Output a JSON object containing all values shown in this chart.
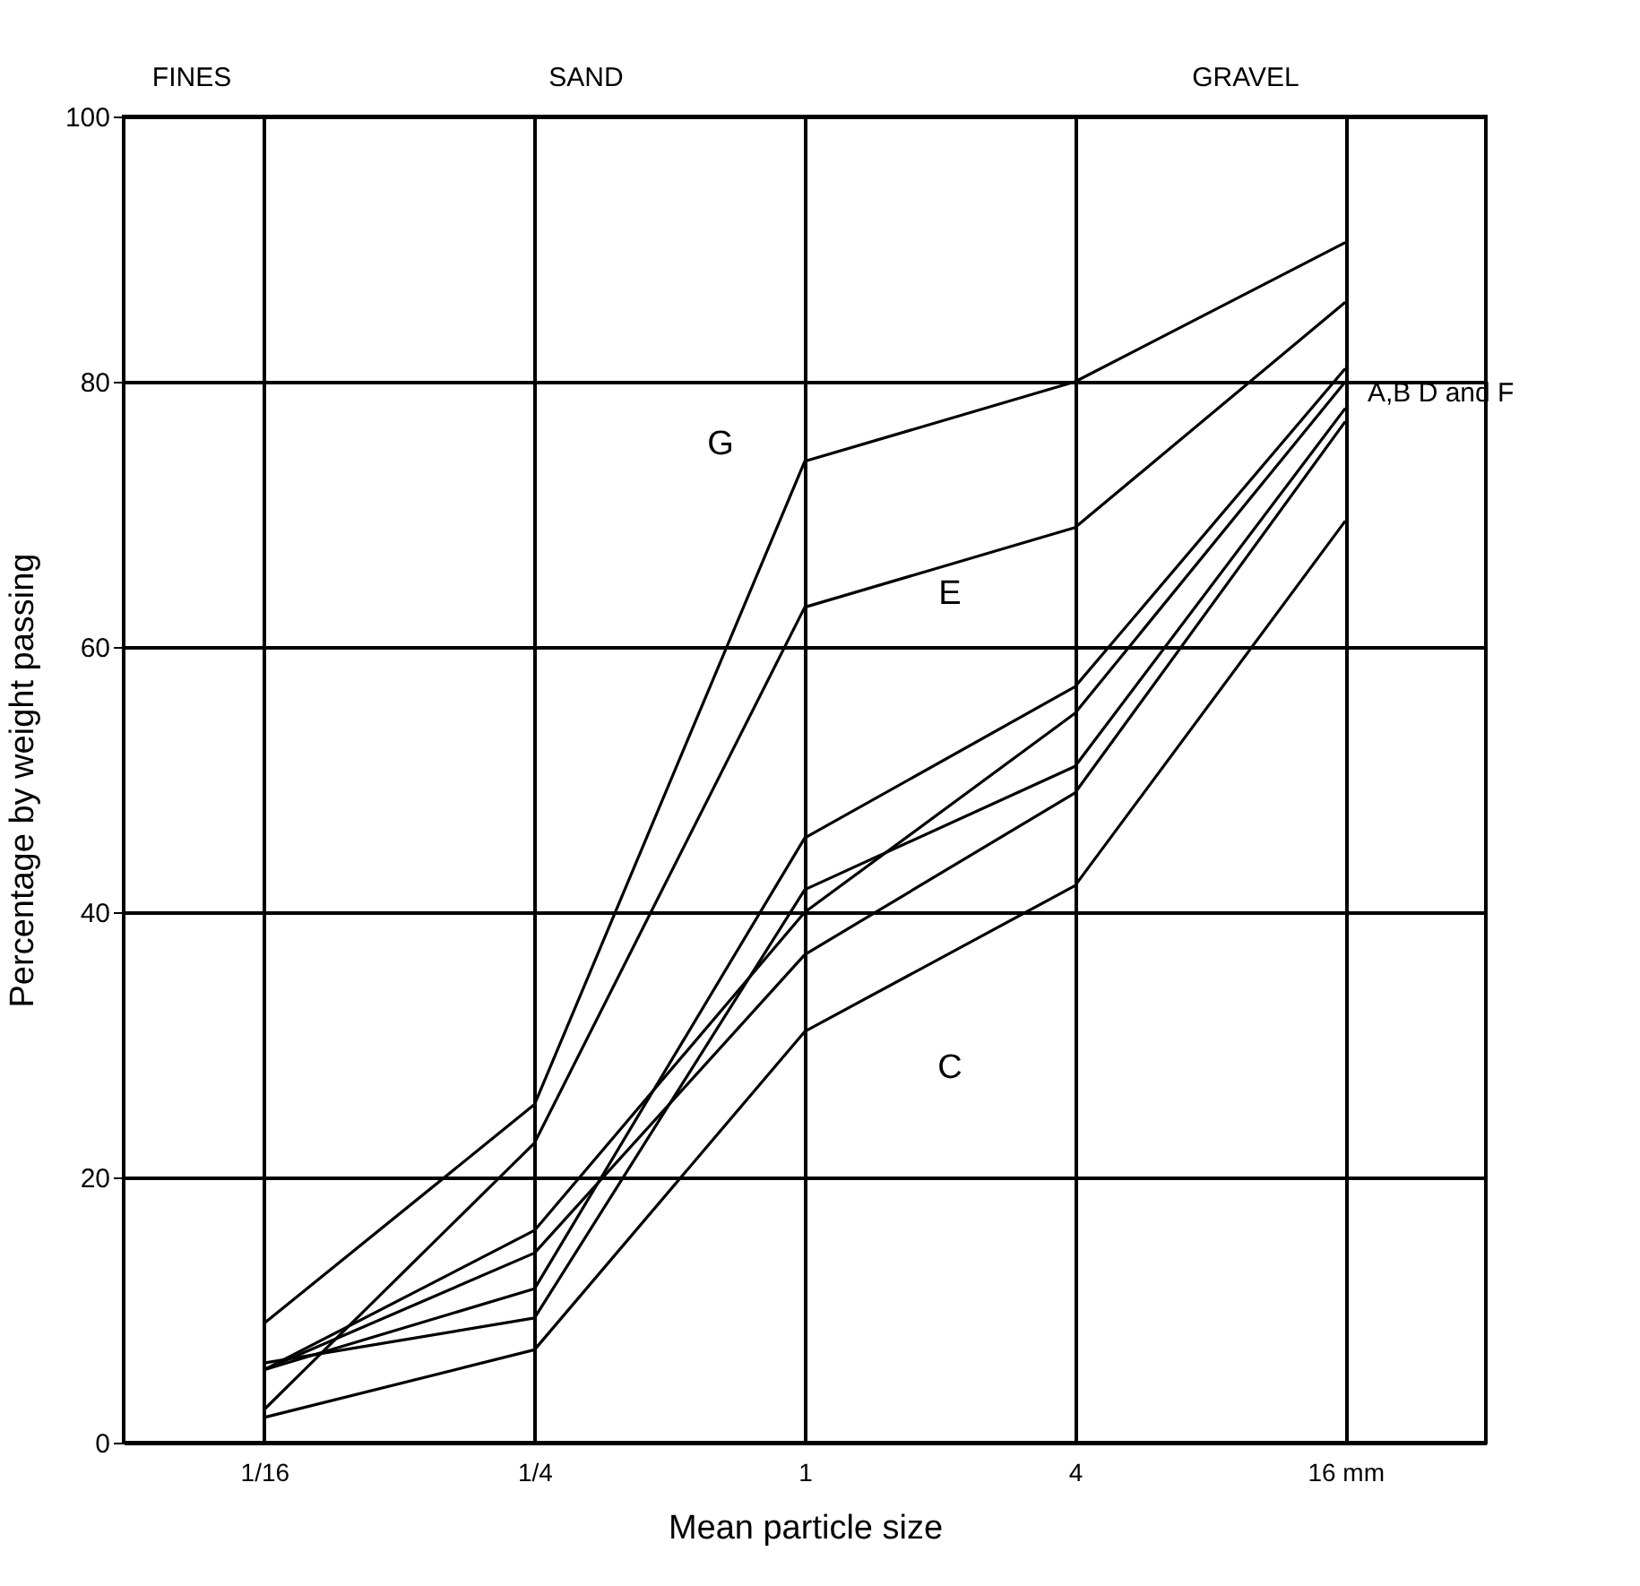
{
  "chart_data": {
    "type": "line",
    "categories": [
      "1/16",
      "1/4",
      "1",
      "4",
      "16 mm"
    ],
    "xlabel": "Mean particle size",
    "ylabel": "Percentage by weight passing",
    "ylim": [
      0,
      100
    ],
    "yticks": [
      0,
      20,
      40,
      60,
      80,
      100
    ],
    "series": [
      {
        "name": "G",
        "color": "#000000",
        "values": [
          9,
          25.5,
          74,
          80,
          90.5
        ]
      },
      {
        "name": "E",
        "color": "#000000",
        "values": [
          2.5,
          22.6,
          63,
          69,
          86
        ]
      },
      {
        "name": "C",
        "color": "#000000",
        "values": [
          1.9,
          7,
          31,
          42,
          69.5
        ]
      },
      {
        "color": "#000000",
        "values": [
          5.5,
          11.6,
          45.6,
          57,
          81
        ]
      },
      {
        "color": "#000000",
        "values": [
          5.5,
          16,
          40,
          55,
          80
        ]
      },
      {
        "color": "#000000",
        "values": [
          6,
          9.4,
          41.7,
          51,
          78
        ]
      },
      {
        "color": "#000000",
        "values": [
          5.5,
          14.3,
          36.8,
          49,
          77
        ]
      }
    ],
    "annotations": [
      "FINES",
      "SAND",
      "GRAVEL",
      "A,B D and F"
    ],
    "grid": true,
    "legend": false,
    "marker": "none",
    "line_style": "solid"
  }
}
